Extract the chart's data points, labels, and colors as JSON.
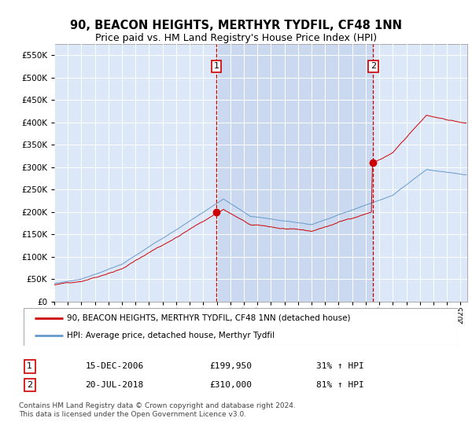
{
  "title": "90, BEACON HEIGHTS, MERTHYR TYDFIL, CF48 1NN",
  "subtitle": "Price paid vs. HM Land Registry's House Price Index (HPI)",
  "title_fontsize": 10.5,
  "subtitle_fontsize": 9,
  "ylim": [
    0,
    575000
  ],
  "yticks": [
    0,
    50000,
    100000,
    150000,
    200000,
    250000,
    300000,
    350000,
    400000,
    450000,
    500000,
    550000
  ],
  "plot_bg_color": "#dce8f8",
  "grid_color": "#ffffff",
  "sale1": {
    "date_num": 2006.96,
    "price": 199950,
    "label": "1",
    "date_str": "15-DEC-2006",
    "hpi_pct": "31% ↑ HPI"
  },
  "sale2": {
    "date_num": 2018.54,
    "price": 310000,
    "label": "2",
    "date_str": "20-JUL-2018",
    "hpi_pct": "81% ↑ HPI"
  },
  "vline_color": "#cc0000",
  "house_line_color": "#cc0000",
  "hpi_line_color": "#6699cc",
  "shade_color": "#c8d8ee",
  "legend_house_label": "90, BEACON HEIGHTS, MERTHYR TYDFIL, CF48 1NN (detached house)",
  "legend_hpi_label": "HPI: Average price, detached house, Merthyr Tydfil",
  "annotation_box_color": "#cc0000",
  "footnote": "Contains HM Land Registry data © Crown copyright and database right 2024.\nThis data is licensed under the Open Government Licence v3.0.",
  "xmin": 1995.0,
  "xmax": 2025.5
}
